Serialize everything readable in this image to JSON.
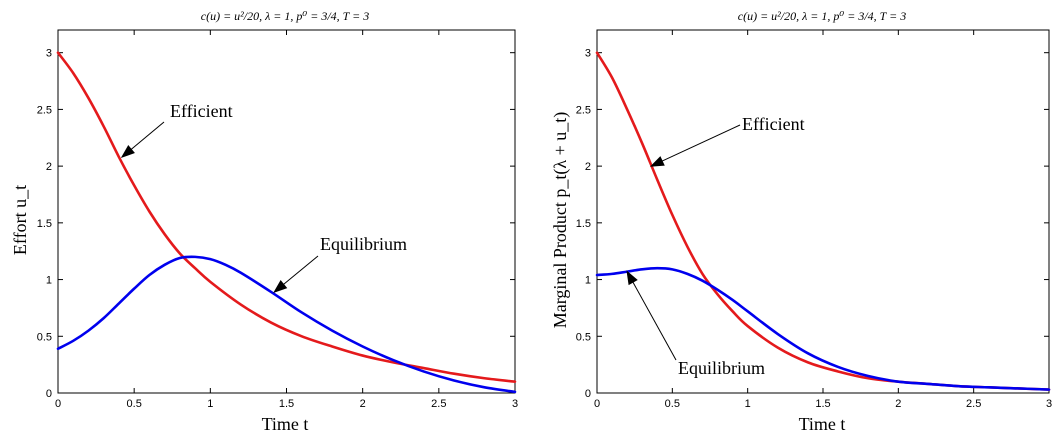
{
  "chart_data": [
    {
      "type": "line",
      "title": "c(u) = u²/20, λ = 1, p⁰ = 3/4, T = 3",
      "xlabel": "Time t",
      "ylabel": "Effort u_t",
      "xlim": [
        0,
        3
      ],
      "ylim": [
        0,
        3.2
      ],
      "xticks": [
        "0",
        "0.5",
        "1",
        "1.5",
        "2",
        "2.5",
        "3"
      ],
      "yticks": [
        "0",
        "0.5",
        "1",
        "1.5",
        "2",
        "2.5",
        "3"
      ],
      "grid": false,
      "series": [
        {
          "name": "Efficient",
          "color": "#e41a1c",
          "x": [
            0,
            0.1,
            0.2,
            0.3,
            0.4,
            0.5,
            0.6,
            0.7,
            0.8,
            0.9,
            1.0,
            1.2,
            1.4,
            1.6,
            1.8,
            2.0,
            2.2,
            2.4,
            2.6,
            2.8,
            3.0
          ],
          "y": [
            3.0,
            2.82,
            2.6,
            2.35,
            2.08,
            1.83,
            1.6,
            1.4,
            1.23,
            1.1,
            0.98,
            0.78,
            0.62,
            0.5,
            0.41,
            0.33,
            0.27,
            0.22,
            0.17,
            0.13,
            0.1
          ]
        },
        {
          "name": "Equilibrium",
          "color": "#0000ee",
          "x": [
            0,
            0.1,
            0.2,
            0.3,
            0.4,
            0.5,
            0.6,
            0.7,
            0.8,
            0.9,
            1.0,
            1.1,
            1.2,
            1.4,
            1.6,
            1.8,
            2.0,
            2.2,
            2.4,
            2.6,
            2.8,
            3.0
          ],
          "y": [
            0.39,
            0.46,
            0.55,
            0.66,
            0.79,
            0.92,
            1.04,
            1.13,
            1.19,
            1.2,
            1.18,
            1.13,
            1.06,
            0.89,
            0.71,
            0.55,
            0.41,
            0.29,
            0.19,
            0.11,
            0.05,
            0.01
          ]
        }
      ],
      "annotations": [
        {
          "text": "Efficient",
          "points_to": [
            0.42,
            2.08
          ]
        },
        {
          "text": "Equilibrium",
          "points_to": [
            1.42,
            0.89
          ]
        }
      ]
    },
    {
      "type": "line",
      "title": "c(u) = u²/20, λ = 1, p⁰ = 3/4, T = 3",
      "xlabel": "Time t",
      "ylabel": "Marginal Product p_t(λ + u_t)",
      "xlim": [
        0,
        3
      ],
      "ylim": [
        0,
        3.2
      ],
      "xticks": [
        "0",
        "0.5",
        "1",
        "1.5",
        "2",
        "2.5",
        "3"
      ],
      "yticks": [
        "0",
        "0.5",
        "1",
        "1.5",
        "2",
        "2.5",
        "3"
      ],
      "grid": false,
      "series": [
        {
          "name": "Efficient",
          "color": "#e41a1c",
          "x": [
            0,
            0.1,
            0.2,
            0.3,
            0.4,
            0.5,
            0.6,
            0.7,
            0.8,
            0.9,
            1.0,
            1.2,
            1.4,
            1.6,
            1.8,
            2.0,
            2.2,
            2.4,
            2.6,
            2.8,
            3.0
          ],
          "y": [
            3.0,
            2.78,
            2.5,
            2.2,
            1.88,
            1.57,
            1.29,
            1.05,
            0.87,
            0.72,
            0.59,
            0.4,
            0.27,
            0.19,
            0.13,
            0.1,
            0.08,
            0.06,
            0.05,
            0.04,
            0.03
          ]
        },
        {
          "name": "Equilibrium",
          "color": "#0000ee",
          "x": [
            0,
            0.1,
            0.2,
            0.3,
            0.4,
            0.5,
            0.6,
            0.7,
            0.8,
            0.9,
            1.0,
            1.2,
            1.4,
            1.6,
            1.8,
            2.0,
            2.2,
            2.4,
            2.6,
            2.8,
            3.0
          ],
          "y": [
            1.04,
            1.05,
            1.07,
            1.09,
            1.1,
            1.09,
            1.05,
            0.99,
            0.91,
            0.82,
            0.72,
            0.52,
            0.35,
            0.23,
            0.15,
            0.1,
            0.08,
            0.06,
            0.05,
            0.04,
            0.03
          ]
        }
      ],
      "annotations": [
        {
          "text": "Efficient",
          "points_to": [
            0.36,
            2.0
          ]
        },
        {
          "text": "Equilibrium",
          "points_to": [
            0.2,
            1.07
          ]
        }
      ]
    }
  ]
}
